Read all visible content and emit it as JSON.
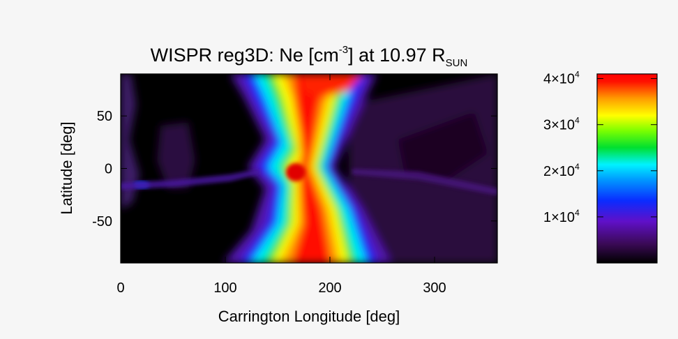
{
  "chart_data": {
    "type": "heatmap",
    "title": {
      "main": "WISPR reg3D: Ne [cm",
      "sup": "-3",
      "after": "] at 10.97 R",
      "sub": "SUN"
    },
    "xlabel": "Carrington Longitude [deg]",
    "ylabel": "Latitude [deg]",
    "xlim": [
      0,
      360
    ],
    "ylim": [
      -90,
      90
    ],
    "xticks": [
      0,
      100,
      200,
      300
    ],
    "yticks": [
      -50,
      0,
      50
    ],
    "colorbar": {
      "range": [
        0,
        41000
      ],
      "ticks": [
        {
          "value": 10000,
          "mantissa": "1",
          "exp": "4"
        },
        {
          "value": 20000,
          "mantissa": "2",
          "exp": "4"
        },
        {
          "value": 30000,
          "mantissa": "3",
          "exp": "4"
        },
        {
          "value": 40000,
          "mantissa": "4",
          "exp": "4"
        }
      ],
      "colormap": "rainbow (black-purple-blue-cyan-green-yellow-red)"
    },
    "features": {
      "neutral_line": [
        {
          "lat": -90,
          "lon": 190
        },
        {
          "lat": -60,
          "lon": 188
        },
        {
          "lat": -30,
          "lon": 172
        },
        {
          "lat": -10,
          "lon": 158
        },
        {
          "lat": 0,
          "lon": 150
        },
        {
          "lat": 15,
          "lon": 160
        },
        {
          "lat": 40,
          "lon": 180
        },
        {
          "lat": 60,
          "lon": 190
        },
        {
          "lat": 90,
          "lon": 190
        }
      ],
      "peak": {
        "lon": 167,
        "lat": -5,
        "value": 41000
      }
    }
  }
}
